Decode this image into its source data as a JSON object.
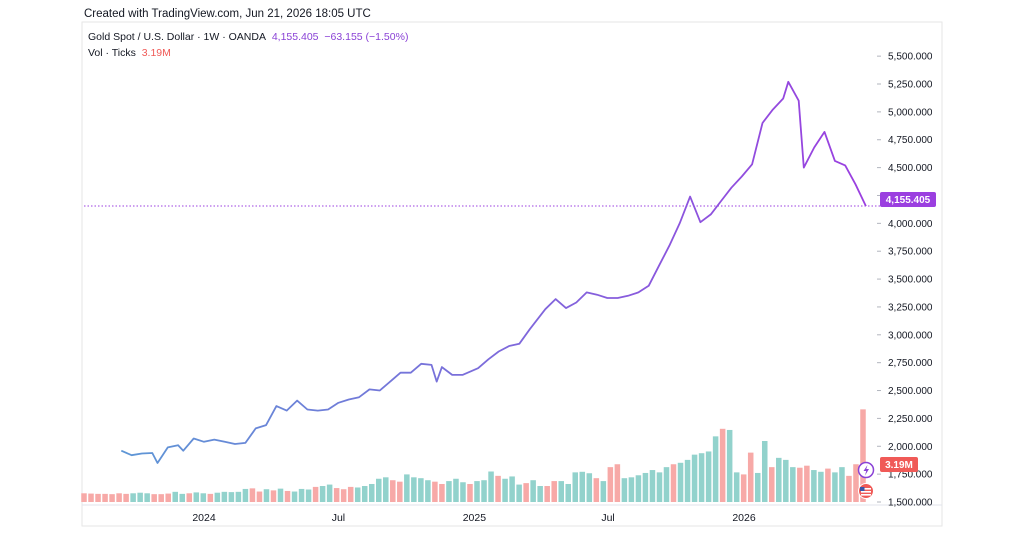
{
  "header": {
    "created": "Created with TradingView.com, Jun 21, 2026 18:05 UTC"
  },
  "legend": {
    "symbol": "Gold Spot / U.S. Dollar · 1W · OANDA",
    "last": "4,155.405",
    "change": "−63.155 (−1.50%)",
    "vol_label": "Vol · Ticks",
    "vol_value": "3.19M"
  },
  "price_badge": "4,155.405",
  "volume_badge": "3.19M",
  "colors": {
    "line_start": "#5b9bd5",
    "line_end": "#9b3fe0",
    "vol_up": "#92d2cc",
    "vol_down": "#f7a9a7",
    "badge_price": "#9b3fe0",
    "badge_vol": "#f05a57"
  },
  "chart_data": {
    "type": "line",
    "ylim": [
      1500,
      5600
    ],
    "y_ticks": [
      {
        "value": 5500,
        "label": "5,500.000"
      },
      {
        "value": 5250,
        "label": "5,250.000"
      },
      {
        "value": 5000,
        "label": "5,000.000"
      },
      {
        "value": 4750,
        "label": "4,750.000"
      },
      {
        "value": 4500,
        "label": "4,500.000"
      },
      {
        "value": 4250,
        "label": "4,250.000"
      },
      {
        "value": 4000,
        "label": "4,000.000"
      },
      {
        "value": 3750,
        "label": "3,750.000"
      },
      {
        "value": 3500,
        "label": "3,500.000"
      },
      {
        "value": 3250,
        "label": "3,250.000"
      },
      {
        "value": 3000,
        "label": "3,000.000"
      },
      {
        "value": 2750,
        "label": "2,750.000"
      },
      {
        "value": 2500,
        "label": "2,500.000"
      },
      {
        "value": 2250,
        "label": "2,250.000"
      },
      {
        "value": 2000,
        "label": "2,000.000"
      },
      {
        "value": 1750,
        "label": "1,750.000"
      },
      {
        "value": 1500,
        "label": "1,500.000"
      }
    ],
    "x_ticks": [
      {
        "date": "2024-01-01",
        "label": "2024"
      },
      {
        "date": "2024-07-01",
        "label": "Jul"
      },
      {
        "date": "2025-01-01",
        "label": "2025"
      },
      {
        "date": "2025-07-01",
        "label": "Jul"
      },
      {
        "date": "2026-01-01",
        "label": "2026"
      }
    ],
    "price_line": 4155.405,
    "volume_scale_max": 4.2,
    "series": [
      {
        "type": "line",
        "points": [
          [
            "2023-09-11",
            1960
          ],
          [
            "2023-09-25",
            1920
          ],
          [
            "2023-10-09",
            1935
          ],
          [
            "2023-10-23",
            1940
          ],
          [
            "2023-10-30",
            1850
          ],
          [
            "2023-11-13",
            1990
          ],
          [
            "2023-11-27",
            2010
          ],
          [
            "2023-12-04",
            1960
          ],
          [
            "2023-12-18",
            2070
          ],
          [
            "2024-01-01",
            2040
          ],
          [
            "2024-01-15",
            2060
          ],
          [
            "2024-01-29",
            2040
          ],
          [
            "2024-02-12",
            2020
          ],
          [
            "2024-02-26",
            2030
          ],
          [
            "2024-03-11",
            2160
          ],
          [
            "2024-03-25",
            2190
          ],
          [
            "2024-04-08",
            2360
          ],
          [
            "2024-04-22",
            2320
          ],
          [
            "2024-05-06",
            2410
          ],
          [
            "2024-05-20",
            2330
          ],
          [
            "2024-06-03",
            2320
          ],
          [
            "2024-06-17",
            2330
          ],
          [
            "2024-07-01",
            2390
          ],
          [
            "2024-07-15",
            2420
          ],
          [
            "2024-07-29",
            2440
          ],
          [
            "2024-08-12",
            2510
          ],
          [
            "2024-08-26",
            2500
          ],
          [
            "2024-09-09",
            2580
          ],
          [
            "2024-09-23",
            2660
          ],
          [
            "2024-10-07",
            2660
          ],
          [
            "2024-10-21",
            2740
          ],
          [
            "2024-11-04",
            2730
          ],
          [
            "2024-11-11",
            2580
          ],
          [
            "2024-11-18",
            2710
          ],
          [
            "2024-12-02",
            2640
          ],
          [
            "2024-12-16",
            2640
          ],
          [
            "2025-01-06",
            2700
          ],
          [
            "2025-01-20",
            2780
          ],
          [
            "2025-02-03",
            2850
          ],
          [
            "2025-02-17",
            2900
          ],
          [
            "2025-03-03",
            2920
          ],
          [
            "2025-03-17",
            3050
          ],
          [
            "2025-04-07",
            3230
          ],
          [
            "2025-04-21",
            3320
          ],
          [
            "2025-05-05",
            3240
          ],
          [
            "2025-05-19",
            3290
          ],
          [
            "2025-06-02",
            3380
          ],
          [
            "2025-06-16",
            3360
          ],
          [
            "2025-06-30",
            3330
          ],
          [
            "2025-07-14",
            3330
          ],
          [
            "2025-07-28",
            3350
          ],
          [
            "2025-08-11",
            3380
          ],
          [
            "2025-08-25",
            3440
          ],
          [
            "2025-09-08",
            3620
          ],
          [
            "2025-09-22",
            3800
          ],
          [
            "2025-10-06",
            4000
          ],
          [
            "2025-10-20",
            4240
          ],
          [
            "2025-11-03",
            4010
          ],
          [
            "2025-11-17",
            4080
          ],
          [
            "2025-12-01",
            4200
          ],
          [
            "2025-12-15",
            4320
          ],
          [
            "2025-12-29",
            4420
          ],
          [
            "2026-01-12",
            4530
          ],
          [
            "2026-01-26",
            4900
          ],
          [
            "2026-02-09",
            5020
          ],
          [
            "2026-02-23",
            5120
          ],
          [
            "2026-03-02",
            5270
          ],
          [
            "2026-03-16",
            5100
          ],
          [
            "2026-03-23",
            4500
          ],
          [
            "2026-04-06",
            4680
          ],
          [
            "2026-04-20",
            4820
          ],
          [
            "2026-05-04",
            4560
          ],
          [
            "2026-05-18",
            4520
          ],
          [
            "2026-06-01",
            4350
          ],
          [
            "2026-06-15",
            4155
          ]
        ]
      },
      {
        "name": "Vol · Ticks",
        "type": "bar",
        "unit": "M",
        "bars": [
          [
            0.3,
            "d"
          ],
          [
            0.29,
            "d"
          ],
          [
            0.28,
            "d"
          ],
          [
            0.28,
            "d"
          ],
          [
            0.27,
            "d"
          ],
          [
            0.3,
            "d"
          ],
          [
            0.28,
            "d"
          ],
          [
            0.3,
            "u"
          ],
          [
            0.32,
            "u"
          ],
          [
            0.3,
            "u"
          ],
          [
            0.27,
            "d"
          ],
          [
            0.27,
            "d"
          ],
          [
            0.29,
            "d"
          ],
          [
            0.35,
            "u"
          ],
          [
            0.28,
            "u"
          ],
          [
            0.3,
            "d"
          ],
          [
            0.33,
            "u"
          ],
          [
            0.3,
            "u"
          ],
          [
            0.28,
            "d"
          ],
          [
            0.32,
            "u"
          ],
          [
            0.35,
            "u"
          ],
          [
            0.34,
            "u"
          ],
          [
            0.35,
            "u"
          ],
          [
            0.45,
            "u"
          ],
          [
            0.47,
            "d"
          ],
          [
            0.36,
            "d"
          ],
          [
            0.44,
            "u"
          ],
          [
            0.4,
            "d"
          ],
          [
            0.46,
            "u"
          ],
          [
            0.38,
            "d"
          ],
          [
            0.36,
            "u"
          ],
          [
            0.45,
            "u"
          ],
          [
            0.43,
            "u"
          ],
          [
            0.52,
            "d"
          ],
          [
            0.55,
            "u"
          ],
          [
            0.6,
            "u"
          ],
          [
            0.48,
            "d"
          ],
          [
            0.44,
            "d"
          ],
          [
            0.52,
            "d"
          ],
          [
            0.5,
            "u"
          ],
          [
            0.55,
            "u"
          ],
          [
            0.62,
            "u"
          ],
          [
            0.8,
            "u"
          ],
          [
            0.85,
            "u"
          ],
          [
            0.75,
            "d"
          ],
          [
            0.7,
            "d"
          ],
          [
            0.95,
            "u"
          ],
          [
            0.85,
            "u"
          ],
          [
            0.82,
            "u"
          ],
          [
            0.75,
            "u"
          ],
          [
            0.7,
            "d"
          ],
          [
            0.62,
            "d"
          ],
          [
            0.72,
            "u"
          ],
          [
            0.8,
            "u"
          ],
          [
            0.68,
            "u"
          ],
          [
            0.62,
            "d"
          ],
          [
            0.72,
            "u"
          ],
          [
            0.75,
            "u"
          ],
          [
            1.05,
            "u"
          ],
          [
            0.9,
            "d"
          ],
          [
            0.8,
            "u"
          ],
          [
            0.88,
            "u"
          ],
          [
            0.6,
            "u"
          ],
          [
            0.65,
            "d"
          ],
          [
            0.75,
            "u"
          ],
          [
            0.55,
            "u"
          ],
          [
            0.55,
            "d"
          ],
          [
            0.72,
            "d"
          ],
          [
            0.72,
            "u"
          ],
          [
            0.62,
            "u"
          ],
          [
            1.02,
            "u"
          ],
          [
            1.04,
            "u"
          ],
          [
            0.99,
            "u"
          ],
          [
            0.82,
            "d"
          ],
          [
            0.72,
            "u"
          ],
          [
            1.2,
            "d"
          ],
          [
            1.3,
            "d"
          ],
          [
            0.82,
            "u"
          ],
          [
            0.85,
            "u"
          ],
          [
            0.92,
            "u"
          ],
          [
            1.0,
            "u"
          ],
          [
            1.1,
            "u"
          ],
          [
            1.02,
            "u"
          ],
          [
            1.2,
            "u"
          ],
          [
            1.3,
            "d"
          ],
          [
            1.35,
            "u"
          ],
          [
            1.45,
            "u"
          ],
          [
            1.63,
            "u"
          ],
          [
            1.68,
            "u"
          ],
          [
            1.74,
            "u"
          ],
          [
            2.26,
            "u"
          ],
          [
            2.52,
            "d"
          ],
          [
            2.48,
            "u"
          ],
          [
            1.02,
            "u"
          ],
          [
            0.95,
            "d"
          ],
          [
            1.7,
            "d"
          ],
          [
            1.0,
            "u"
          ],
          [
            2.1,
            "u"
          ],
          [
            1.2,
            "d"
          ],
          [
            1.52,
            "u"
          ],
          [
            1.45,
            "u"
          ],
          [
            1.2,
            "u"
          ],
          [
            1.18,
            "d"
          ],
          [
            1.25,
            "d"
          ],
          [
            1.1,
            "u"
          ],
          [
            1.04,
            "u"
          ],
          [
            1.15,
            "d"
          ],
          [
            1.02,
            "u"
          ],
          [
            1.2,
            "u"
          ],
          [
            0.9,
            "d"
          ],
          [
            1.3,
            "d"
          ],
          [
            3.19,
            "d"
          ]
        ]
      }
    ]
  }
}
